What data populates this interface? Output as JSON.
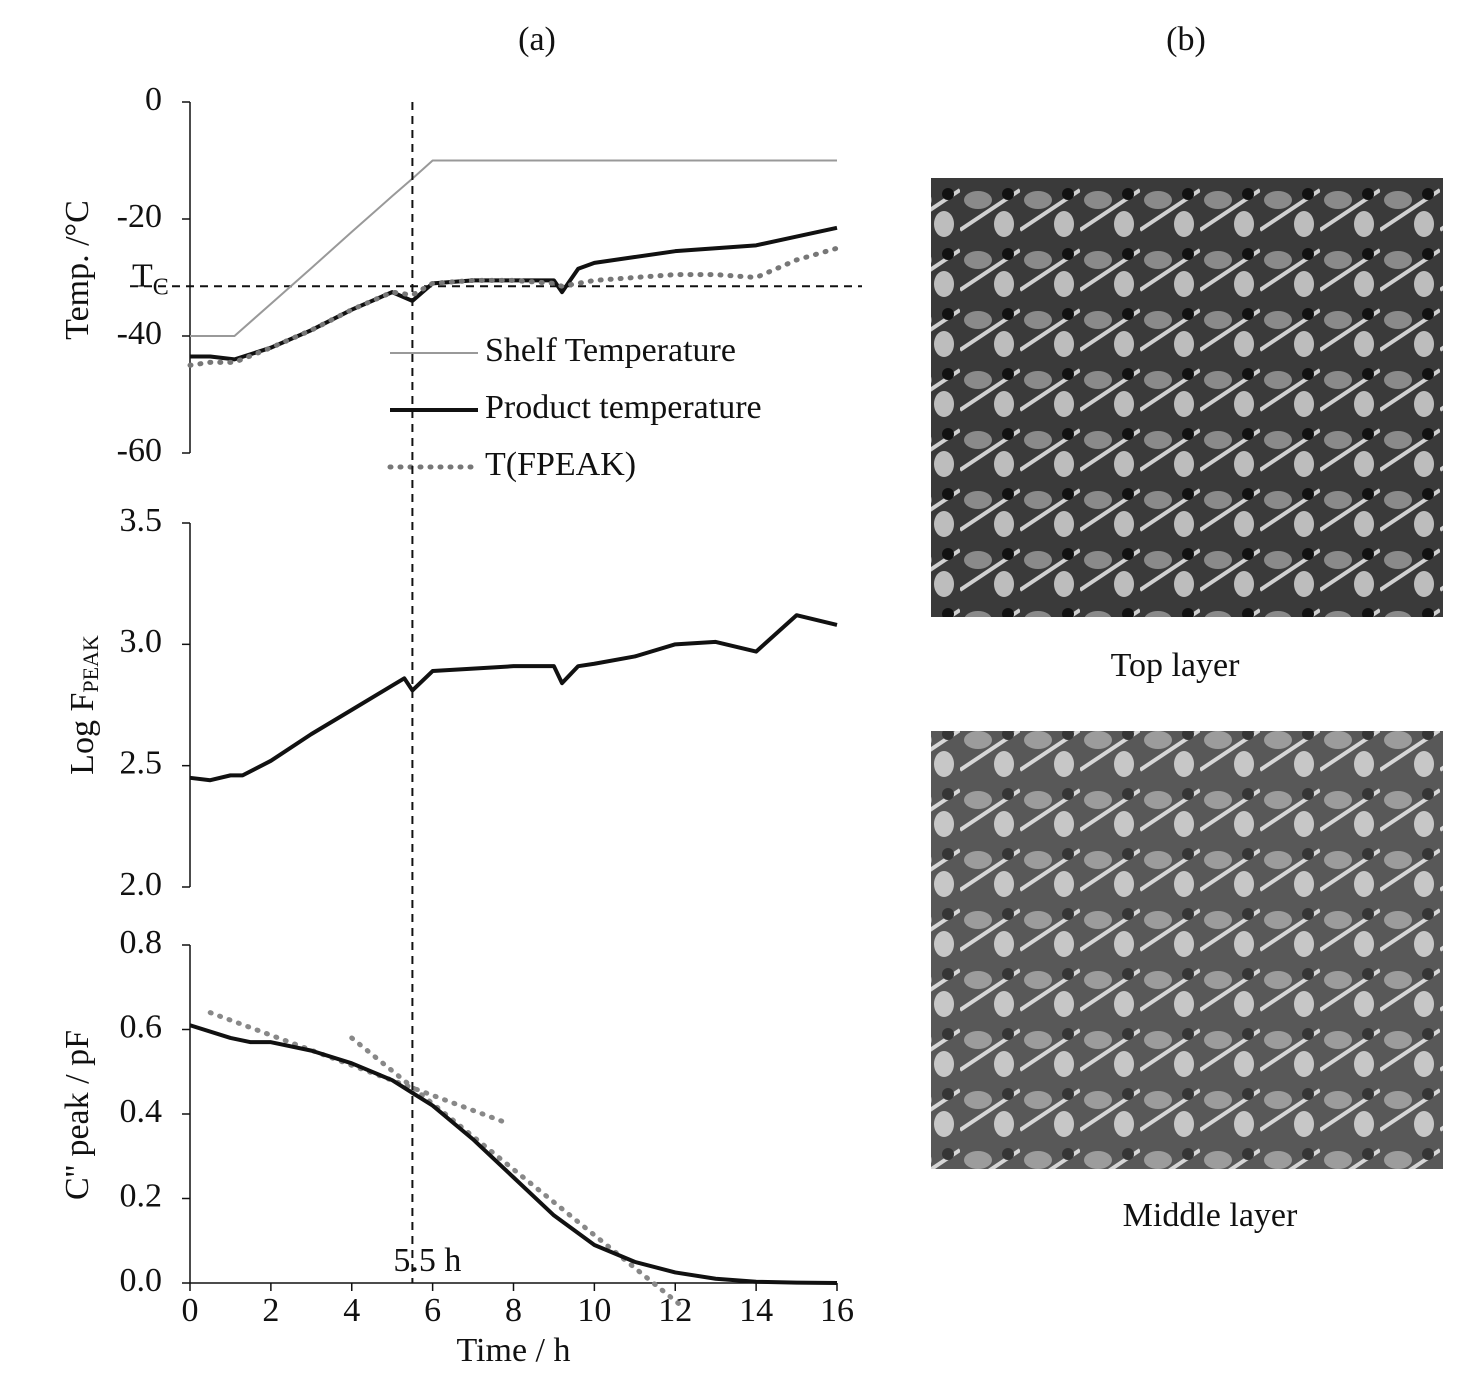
{
  "figure": {
    "panel_a": "(a)",
    "panel_b": "(b)",
    "images": [
      {
        "caption": "Top layer"
      },
      {
        "caption": "Middle layer"
      }
    ]
  },
  "chart_data": [
    {
      "type": "line",
      "y_label": "Temp. /°C",
      "x": [
        0,
        0.5,
        1.1,
        2,
        3,
        4,
        5,
        5.5,
        6,
        7,
        8,
        9,
        9.2,
        9.6,
        10,
        11,
        12,
        13,
        14,
        15,
        16
      ],
      "series": [
        {
          "name": "Shelf Temperature",
          "color": "#999999",
          "dash": "solid",
          "width": 2,
          "values": [
            -40,
            -40,
            -40,
            -34.5,
            -28.4,
            -22.2,
            -16.1,
            -13.1,
            -10,
            -10,
            -10,
            -10,
            -10,
            -10,
            -10,
            -10,
            -10,
            -10,
            -10,
            -10,
            -10
          ]
        },
        {
          "name": "Product temperature",
          "color": "#111111",
          "dash": "solid",
          "width": 4,
          "values": [
            -43.5,
            -43.5,
            -44,
            -42,
            -39,
            -35.5,
            -32.5,
            -34,
            -31,
            -30.5,
            -30.5,
            -30.5,
            -32.5,
            -28.5,
            -27.5,
            -26.5,
            -25.5,
            -25,
            -24.5,
            -23,
            -21.5
          ]
        },
        {
          "name": "T(FPEAK)",
          "color": "#777777",
          "dash": "dotted",
          "width": 5,
          "values": [
            -45,
            -44.5,
            -44.5,
            -42,
            -39,
            -35.5,
            -32.5,
            -33,
            -31,
            -30.5,
            -30.5,
            -31,
            -31.5,
            -31,
            -30.5,
            -30,
            -29.5,
            -29.5,
            -30,
            -27,
            -25
          ]
        }
      ],
      "xlim": [
        0,
        16
      ],
      "ylim": [
        -60,
        0
      ],
      "yticks": [
        -60,
        -40,
        -20,
        0
      ],
      "hline": {
        "value": -31.5,
        "label": "T",
        "label_subscript": "C"
      }
    },
    {
      "type": "line",
      "y_label": "Log F",
      "y_label_subscript": "PEAK",
      "x": [
        0,
        0.5,
        1,
        1.3,
        2,
        3,
        4,
        5,
        5.3,
        5.5,
        6,
        7,
        8,
        9,
        9.2,
        9.6,
        10,
        11,
        12,
        13,
        14,
        15,
        16
      ],
      "series": [
        {
          "color": "#111111",
          "dash": "solid",
          "width": 4,
          "values": [
            2.45,
            2.44,
            2.46,
            2.46,
            2.52,
            2.63,
            2.73,
            2.83,
            2.86,
            2.81,
            2.89,
            2.9,
            2.91,
            2.91,
            2.84,
            2.91,
            2.92,
            2.95,
            3.0,
            3.01,
            2.97,
            3.12,
            3.08
          ]
        }
      ],
      "xlim": [
        0,
        16
      ],
      "ylim": [
        2.0,
        3.5
      ],
      "yticks": [
        {
          "value": 2,
          "label": "2.0"
        },
        2.5,
        {
          "value": 3,
          "label": "3.0"
        },
        3.5
      ]
    },
    {
      "type": "line",
      "y_label": "C'' peak / pF",
      "x_label": "Time / h",
      "x": [
        0,
        1,
        1.5,
        2,
        3,
        4,
        5,
        5.5,
        6,
        7,
        8,
        9,
        10,
        11,
        12,
        13,
        14,
        15,
        16
      ],
      "series": [
        {
          "color": "#111111",
          "dash": "solid",
          "width": 4,
          "values": [
            0.61,
            0.58,
            0.57,
            0.57,
            0.55,
            0.52,
            0.48,
            0.45,
            0.42,
            0.34,
            0.25,
            0.16,
            0.09,
            0.05,
            0.025,
            0.01,
            0.003,
            0.001,
            0
          ]
        }
      ],
      "tangents": [
        {
          "color": "#888888",
          "x": [
            0.5,
            7.8
          ],
          "values": [
            0.64,
            0.38
          ]
        },
        {
          "color": "#888888",
          "x": [
            4,
            12.1
          ],
          "values": [
            0.58,
            -0.05
          ]
        }
      ],
      "xlim": [
        0,
        16
      ],
      "ylim": [
        0,
        0.8
      ],
      "xticks": [
        0,
        2,
        4,
        6,
        8,
        10,
        12,
        14,
        16
      ],
      "yticks": [
        {
          "value": 0,
          "label": "0.0"
        },
        0.2,
        0.4,
        0.6,
        0.8
      ],
      "vline": {
        "value": 5.5,
        "label": "5.5 h"
      }
    }
  ]
}
